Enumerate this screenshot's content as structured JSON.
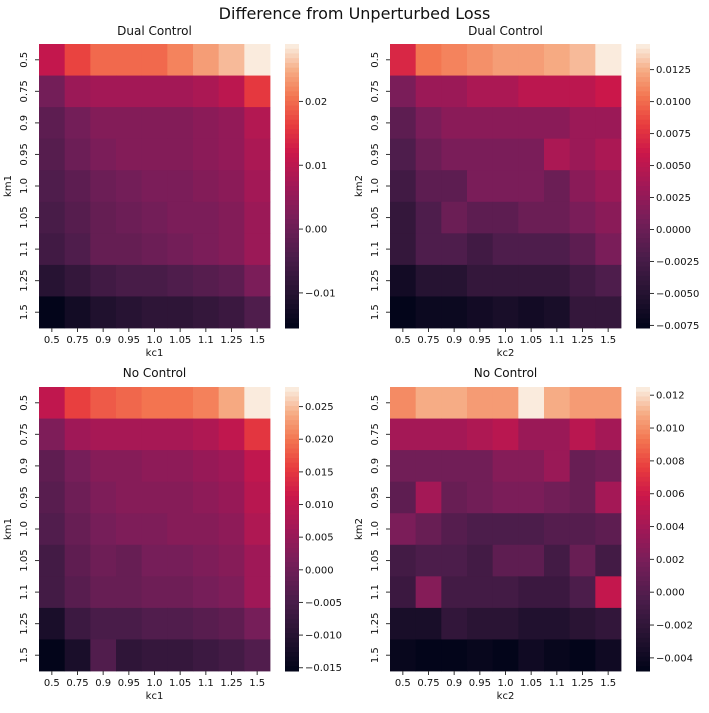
{
  "figure": {
    "suptitle": "Difference from Unperturbed Loss"
  },
  "chart_data": [
    {
      "type": "heatmap",
      "title": "Dual Control",
      "xlabel": "kc1",
      "ylabel": "km1",
      "x_ticks": [
        "0.5",
        "0.75",
        "0.9",
        "0.95",
        "1.0",
        "1.05",
        "1.1",
        "1.25",
        "1.5"
      ],
      "y_ticks": [
        "0.5",
        "0.75",
        "0.9",
        "0.95",
        "1.0",
        "1.05",
        "1.1",
        "1.25",
        "1.5"
      ],
      "colorbar_ticks": [
        -0.01,
        0.0,
        0.01,
        0.02
      ],
      "colorbar_tick_labels": [
        "−0.01",
        "0.00",
        "0.01",
        "0.02"
      ],
      "vmin": -0.0155,
      "vmax": 0.029,
      "colormap": "rocket",
      "values": [
        [
          0.011,
          0.017,
          0.02,
          0.02,
          0.02,
          0.022,
          0.024,
          0.026,
          0.029
        ],
        [
          0.001,
          0.006,
          0.007,
          0.007,
          0.007,
          0.007,
          0.008,
          0.01,
          0.016
        ],
        [
          -0.002,
          0.001,
          0.003,
          0.003,
          0.003,
          0.003,
          0.004,
          0.005,
          0.009
        ],
        [
          -0.003,
          -0.0,
          0.002,
          0.003,
          0.003,
          0.003,
          0.004,
          0.005,
          0.008
        ],
        [
          -0.004,
          -0.002,
          0.0,
          0.001,
          0.002,
          0.002,
          0.003,
          0.004,
          0.007
        ],
        [
          -0.005,
          -0.003,
          -0.001,
          0.0,
          0.001,
          0.002,
          0.002,
          0.003,
          0.006
        ],
        [
          -0.006,
          -0.004,
          -0.001,
          -0.001,
          0.0,
          0.001,
          0.002,
          0.003,
          0.006
        ],
        [
          -0.01,
          -0.008,
          -0.006,
          -0.005,
          -0.005,
          -0.004,
          -0.003,
          -0.002,
          0.002
        ],
        [
          -0.0155,
          -0.013,
          -0.011,
          -0.01,
          -0.009,
          -0.009,
          -0.008,
          -0.007,
          -0.004
        ]
      ]
    },
    {
      "type": "heatmap",
      "title": "Dual Control",
      "xlabel": "kc2",
      "ylabel": "km2",
      "x_ticks": [
        "0.5",
        "0.75",
        "0.9",
        "0.95",
        "1.0",
        "1.05",
        "1.1",
        "1.25",
        "1.5"
      ],
      "y_ticks": [
        "0.5",
        "0.75",
        "0.9",
        "0.95",
        "1.0",
        "1.05",
        "1.1",
        "1.25",
        "1.5"
      ],
      "colorbar_ticks": [
        -0.0075,
        -0.005,
        -0.0025,
        0.0,
        0.0025,
        0.005,
        0.0075,
        0.01,
        0.0125
      ],
      "colorbar_tick_labels": [
        "−0.0075",
        "−0.0050",
        "−0.0025",
        "0.0000",
        "0.0025",
        "0.0050",
        "0.0075",
        "0.0100",
        "0.0125"
      ],
      "vmin": -0.0077,
      "vmax": 0.0145,
      "colormap": "rocket",
      "values": [
        [
          0.007,
          0.0105,
          0.011,
          0.0115,
          0.012,
          0.012,
          0.0125,
          0.013,
          0.0145
        ],
        [
          0.001,
          0.003,
          0.003,
          0.004,
          0.004,
          0.005,
          0.005,
          0.005,
          0.006
        ],
        [
          -0.001,
          0.001,
          0.002,
          0.002,
          0.002,
          0.002,
          0.002,
          0.003,
          0.003
        ],
        [
          -0.002,
          -0.0,
          0.001,
          0.001,
          0.001,
          0.001,
          0.004,
          0.003,
          0.004
        ],
        [
          -0.003,
          -0.001,
          -0.001,
          0.001,
          0.001,
          0.001,
          0.0,
          0.002,
          0.003
        ],
        [
          -0.004,
          -0.002,
          -0.0,
          -0.001,
          -0.001,
          -0.0,
          0.0,
          0.001,
          0.002
        ],
        [
          -0.004,
          -0.002,
          -0.002,
          -0.003,
          -0.002,
          -0.002,
          -0.002,
          -0.001,
          0.001
        ],
        [
          -0.0065,
          -0.005,
          -0.005,
          -0.004,
          -0.004,
          -0.004,
          -0.004,
          -0.003,
          -0.002
        ],
        [
          -0.0077,
          -0.007,
          -0.007,
          -0.0065,
          -0.006,
          -0.0065,
          -0.006,
          -0.004,
          -0.004
        ]
      ]
    },
    {
      "type": "heatmap",
      "title": "No Control",
      "xlabel": "kc1",
      "ylabel": "km1",
      "x_ticks": [
        "0.5",
        "0.75",
        "0.9",
        "0.95",
        "1.0",
        "1.05",
        "1.1",
        "1.25",
        "1.5"
      ],
      "y_ticks": [
        "0.5",
        "0.75",
        "0.9",
        "0.95",
        "1.0",
        "1.05",
        "1.1",
        "1.25",
        "1.5"
      ],
      "colorbar_ticks": [
        -0.015,
        -0.01,
        -0.005,
        0.0,
        0.005,
        0.01,
        0.015,
        0.02,
        0.025
      ],
      "colorbar_tick_labels": [
        "−0.015",
        "−0.010",
        "−0.005",
        "0.000",
        "0.005",
        "0.010",
        "0.015",
        "0.020",
        "0.025"
      ],
      "vmin": -0.0155,
      "vmax": 0.028,
      "colormap": "rocket",
      "values": [
        [
          0.01,
          0.016,
          0.018,
          0.019,
          0.02,
          0.02,
          0.021,
          0.024,
          0.028
        ],
        [
          0.002,
          0.006,
          0.007,
          0.007,
          0.007,
          0.007,
          0.008,
          0.01,
          0.015
        ],
        [
          -0.002,
          0.001,
          0.003,
          0.003,
          0.004,
          0.004,
          0.005,
          0.006,
          0.01
        ],
        [
          -0.003,
          -0.0,
          0.002,
          0.003,
          0.003,
          0.003,
          0.004,
          0.005,
          0.009
        ],
        [
          -0.004,
          -0.001,
          0.001,
          0.002,
          0.002,
          0.003,
          0.003,
          0.004,
          0.008
        ],
        [
          -0.006,
          -0.002,
          -0.0,
          -0.001,
          0.001,
          0.001,
          0.002,
          0.003,
          0.006
        ],
        [
          -0.006,
          -0.003,
          -0.001,
          -0.001,
          -0.0,
          0.0,
          0.001,
          0.002,
          0.006
        ],
        [
          -0.012,
          -0.007,
          -0.005,
          -0.005,
          -0.004,
          -0.004,
          -0.003,
          -0.002,
          0.001
        ],
        [
          -0.0155,
          -0.012,
          -0.004,
          -0.009,
          -0.008,
          -0.008,
          -0.007,
          -0.006,
          -0.004
        ]
      ]
    },
    {
      "type": "heatmap",
      "title": "No Control",
      "xlabel": "kc2",
      "ylabel": "km2",
      "x_ticks": [
        "0.5",
        "0.75",
        "0.9",
        "0.95",
        "1.0",
        "1.05",
        "1.1",
        "1.25",
        "1.5"
      ],
      "y_ticks": [
        "0.5",
        "0.75",
        "0.9",
        "0.95",
        "1.0",
        "1.05",
        "1.1",
        "1.25",
        "1.5"
      ],
      "colorbar_ticks": [
        -0.004,
        -0.002,
        0.0,
        0.002,
        0.004,
        0.006,
        0.008,
        0.01,
        0.012
      ],
      "colorbar_tick_labels": [
        "−0.004",
        "−0.002",
        "0.000",
        "0.002",
        "0.004",
        "0.006",
        "0.008",
        "0.010",
        "0.012"
      ],
      "vmin": -0.0048,
      "vmax": 0.0125,
      "colormap": "rocket",
      "values": [
        [
          0.01,
          0.011,
          0.011,
          0.0105,
          0.0105,
          0.0125,
          0.011,
          0.0105,
          0.0105
        ],
        [
          0.004,
          0.004,
          0.004,
          0.0045,
          0.005,
          0.0035,
          0.0035,
          0.005,
          0.004
        ],
        [
          0.0015,
          0.0015,
          0.0015,
          0.0015,
          0.0025,
          0.0025,
          0.0035,
          0.001,
          0.0015
        ],
        [
          0.0005,
          0.004,
          0.001,
          0.0015,
          0.002,
          0.002,
          0.0015,
          0.001,
          0.004
        ],
        [
          0.002,
          0.001,
          0.0,
          -0.0005,
          -0.0005,
          -0.0005,
          0.0,
          0.0,
          0.0005
        ],
        [
          -0.001,
          -0.0005,
          -0.0005,
          -0.001,
          0.0005,
          0.0005,
          -0.001,
          0.001,
          -0.001
        ],
        [
          -0.0015,
          0.0025,
          -0.001,
          -0.001,
          -0.001,
          -0.0015,
          -0.0015,
          -0.0005,
          0.0055
        ],
        [
          -0.0035,
          -0.0035,
          -0.002,
          -0.0025,
          -0.0025,
          -0.003,
          -0.003,
          -0.0025,
          -0.002
        ],
        [
          -0.0045,
          -0.0048,
          -0.0048,
          -0.0045,
          -0.0048,
          -0.004,
          -0.0045,
          -0.0048,
          -0.004
        ]
      ]
    }
  ]
}
